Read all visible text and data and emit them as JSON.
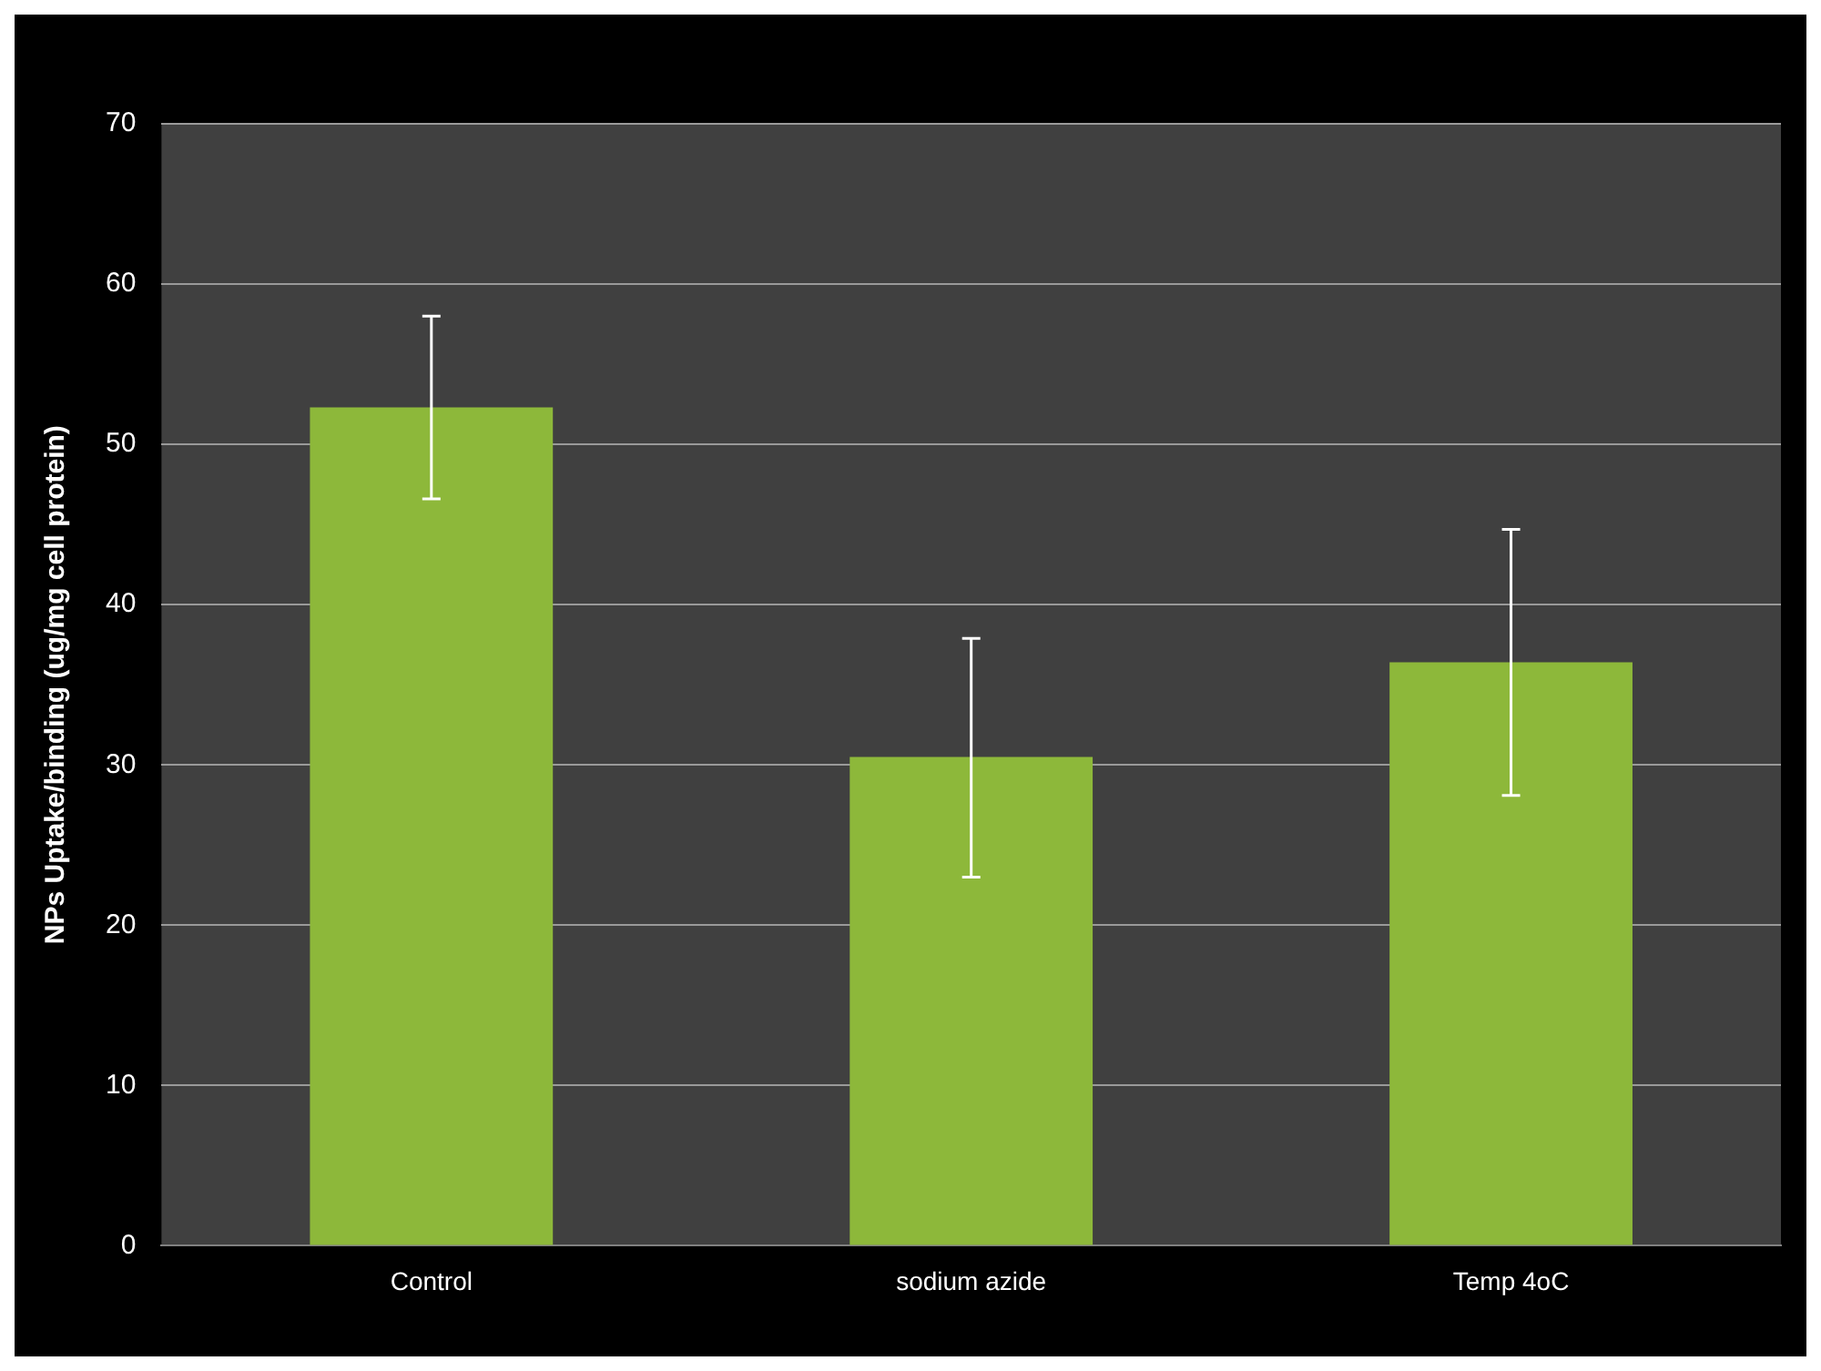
{
  "chart_data": {
    "type": "bar",
    "ylabel": "NPs Uptake/binding (ug/mg cell protein)",
    "categories": [
      "Control",
      "sodium azide",
      "Temp 4oC"
    ],
    "values": [
      52.3,
      30.5,
      36.4
    ],
    "errors": [
      [
        46.6,
        58.0
      ],
      [
        23.0,
        37.9
      ],
      [
        28.1,
        44.7
      ]
    ],
    "color": "#8db83a",
    "ylim": [
      0,
      70
    ],
    "yticks": [
      0,
      10,
      20,
      30,
      40,
      50,
      60,
      70
    ],
    "grid": "y",
    "legend": false
  }
}
